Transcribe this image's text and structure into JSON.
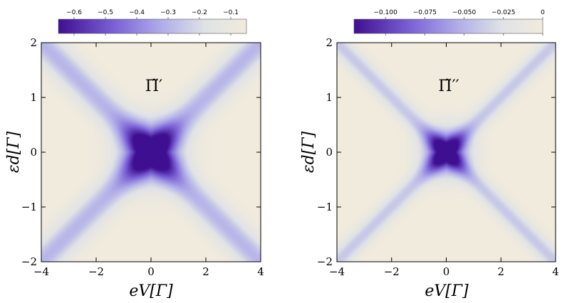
{
  "chart_data": [
    {
      "type": "heatmap",
      "panel_label": "Π̃′",
      "xlabel": "eV[Γ]",
      "ylabel": "εd[Γ]",
      "xlim": [
        -4,
        4
      ],
      "ylim": [
        -2,
        2
      ],
      "x_ticks": [
        "−4",
        "−2",
        "0",
        "2",
        "4"
      ],
      "y_ticks": [
        "−2",
        "−1",
        "0",
        "1",
        "2"
      ],
      "colorbar": {
        "range": [
          -0.65,
          -0.05
        ],
        "ticks": [
          -0.6,
          -0.5,
          -0.4,
          -0.3,
          -0.2,
          -0.1
        ],
        "tick_labels": [
          "−0.6",
          "−0.5",
          "−0.4",
          "−0.3",
          "−0.2",
          "−0.1"
        ]
      },
      "features": {
        "minimum_value": -0.65,
        "minimum_at": [
          0,
          0
        ],
        "ridges": "lines εd = ±eV/2",
        "background_value": -0.05
      },
      "colors": {
        "low": "#3f0f92",
        "mid": "#a9a6ec",
        "high": "#f1ebdd"
      }
    },
    {
      "type": "heatmap",
      "panel_label": "Π̃′′",
      "xlabel": "eV[Γ]",
      "ylabel": "εd[Γ]",
      "xlim": [
        -4,
        4
      ],
      "ylim": [
        -2,
        2
      ],
      "x_ticks": [
        "−4",
        "−2",
        "0",
        "2",
        "4"
      ],
      "y_ticks": [
        "−2",
        "−1",
        "0",
        "1",
        "2"
      ],
      "colorbar": {
        "range": [
          -0.12,
          0
        ],
        "ticks": [
          -0.1,
          -0.075,
          -0.05,
          -0.025,
          0
        ],
        "tick_labels": [
          "−0.100",
          "−0.075",
          "−0.050",
          "−0.025",
          "0"
        ]
      },
      "features": {
        "minimum_value": -0.12,
        "minimum_at": [
          0,
          0
        ],
        "ridges": "lines εd = ±eV/2",
        "background_value": 0
      },
      "colors": {
        "low": "#3f0f92",
        "mid": "#a9a6ec",
        "high": "#f1ebdd"
      }
    }
  ]
}
